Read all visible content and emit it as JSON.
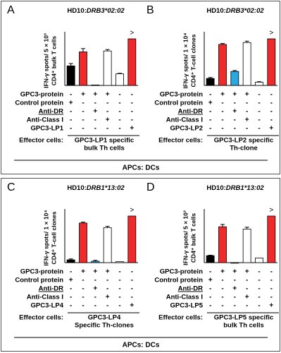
{
  "chart_data": [
    {
      "type": "bar",
      "letter": "A",
      "title": "HD10:",
      "title_allele": "DRB3*02:02",
      "ylabel": [
        "IFN-γ spots/ 5 × 10³",
        "CD4⁺ bulk T cells"
      ],
      "values": [
        42,
        72,
        1,
        74,
        25,
        100
      ],
      "errors": [
        5,
        7,
        0,
        3,
        1,
        0
      ],
      "colors": [
        "#000000",
        "#ee2a2a",
        "#2aa8e0",
        "#ffffff",
        "#ffffff",
        "#ee2a2a"
      ],
      "ylim": [
        0,
        100
      ],
      "annotation": ">",
      "rows": [
        {
          "label": "GPC3-protein",
          "color": "#e00000",
          "signs": [
            "-",
            "+",
            "+",
            "+",
            "-",
            "-"
          ]
        },
        {
          "label": "Control protein",
          "color": "#000000",
          "signs": [
            "+",
            "-",
            "-",
            "-",
            "-",
            "-"
          ]
        },
        {
          "label": "Anti-DR",
          "color": "#2b3f9a",
          "signs": [
            "-",
            "-",
            "+",
            "-",
            "-",
            "-"
          ]
        },
        {
          "label": "Anti-Class I",
          "color": "#000000",
          "signs": [
            "-",
            "-",
            "-",
            "+",
            "-",
            "-"
          ]
        },
        {
          "label": "GPC3-LP1",
          "color": "#e00000",
          "signs": [
            "-",
            "-",
            "-",
            "-",
            "-",
            "+"
          ]
        }
      ],
      "effector_label": "Effector cells:",
      "effector_value": [
        "GPC3-LP1 specific",
        "bulk Th cells"
      ]
    },
    {
      "type": "bar",
      "letter": "B",
      "title": "HD10:",
      "title_allele": "DRB3*02:02",
      "ylabel": [
        "IFN-γ spots/ 1 × 10⁴",
        "CD4⁺ T-cell clones"
      ],
      "values": [
        15,
        88,
        30,
        92,
        7,
        100
      ],
      "errors": [
        2,
        2,
        2,
        3,
        1,
        0
      ],
      "colors": [
        "#000000",
        "#ee2a2a",
        "#2aa8e0",
        "#ffffff",
        "#ffffff",
        "#ee2a2a"
      ],
      "ylim": [
        0,
        100
      ],
      "annotation": ">",
      "rows": [
        {
          "label": "GPC3-protein",
          "color": "#e00000",
          "signs": [
            "-",
            "+",
            "+",
            "+",
            "-",
            "-"
          ]
        },
        {
          "label": "Control protein",
          "color": "#000000",
          "signs": [
            "+",
            "-",
            "-",
            "-",
            "-",
            "-"
          ]
        },
        {
          "label": "Anti-DR",
          "color": "#2b3f9a",
          "signs": [
            "-",
            "-",
            "+",
            "-",
            "-",
            "-"
          ]
        },
        {
          "label": "Anti-Class I",
          "color": "#000000",
          "signs": [
            "-",
            "-",
            "-",
            "+",
            "-",
            "-"
          ]
        },
        {
          "label": "GPC3-LP2",
          "color": "#e00000",
          "signs": [
            "-",
            "-",
            "-",
            "-",
            "-",
            "+"
          ]
        }
      ],
      "effector_label": "Effector cells:",
      "effector_value": [
        "GPC3-LP2 specific",
        "Th-clone"
      ]
    },
    {
      "type": "bar",
      "letter": "C",
      "title": "HD10:",
      "title_allele": "DRB1*13:02",
      "ylabel": [
        "IFN-γ spots/ 1 × 10⁴",
        "CD4⁺ T-cell clones"
      ],
      "values": [
        6,
        85,
        3,
        75,
        2,
        100
      ],
      "errors": [
        2,
        2,
        2,
        3,
        0,
        0
      ],
      "colors": [
        "#000000",
        "#ee2a2a",
        "#2aa8e0",
        "#ffffff",
        "#ffffff",
        "#ee2a2a"
      ],
      "ylim": [
        0,
        100
      ],
      "annotation": ">",
      "rows": [
        {
          "label": "GPC3-protein",
          "color": "#e00000",
          "signs": [
            "-",
            "+",
            "+",
            "+",
            "-",
            "-"
          ]
        },
        {
          "label": "Control protein",
          "color": "#000000",
          "signs": [
            "+",
            "-",
            "-",
            "-",
            "-",
            "-"
          ]
        },
        {
          "label": "Anti-DR",
          "color": "#2b3f9a",
          "signs": [
            "-",
            "-",
            "+",
            "-",
            "-",
            "-"
          ]
        },
        {
          "label": "Anti-Class I",
          "color": "#000000",
          "signs": [
            "-",
            "-",
            "-",
            "+",
            "-",
            "-"
          ]
        },
        {
          "label": "GPC3-LP4",
          "color": "#e00000",
          "signs": [
            "-",
            "-",
            "-",
            "-",
            "-",
            "+"
          ]
        }
      ],
      "effector_label": "Effector cells:",
      "effector_value": [
        "GPC3-LP4",
        "Specific Th-clones"
      ]
    },
    {
      "type": "bar",
      "letter": "D",
      "title": "HD10:",
      "title_allele": "DRB1*13:02",
      "ylabel": [
        "IFN-γ spots/ 5 × 10³",
        "CD4⁺ bulk T cells"
      ],
      "values": [
        15,
        77,
        0,
        72,
        10,
        100
      ],
      "errors": [
        1,
        5,
        0,
        4,
        0,
        0
      ],
      "colors": [
        "#000000",
        "#ee2a2a",
        "#2aa8e0",
        "#ffffff",
        "#ffffff",
        "#ee2a2a"
      ],
      "ylim": [
        0,
        100
      ],
      "annotation": ">",
      "rows": [
        {
          "label": "GPC3-protein",
          "color": "#e00000",
          "signs": [
            "-",
            "+",
            "+",
            "+",
            "-",
            "-"
          ]
        },
        {
          "label": "Control protein",
          "color": "#000000",
          "signs": [
            "+",
            "-",
            "-",
            "-",
            "-",
            "-"
          ]
        },
        {
          "label": "Anti-DR",
          "color": "#2b3f9a",
          "signs": [
            "-",
            "-",
            "+",
            "-",
            "-",
            "-"
          ]
        },
        {
          "label": "Anti-Class I",
          "color": "#000000",
          "signs": [
            "-",
            "-",
            "-",
            "+",
            "-",
            "-"
          ]
        },
        {
          "label": "GPC3-LP5",
          "color": "#e00000",
          "signs": [
            "-",
            "-",
            "-",
            "-",
            "-",
            "+"
          ]
        }
      ],
      "effector_label": "Effector cells:",
      "effector_value": [
        "GPC3-LP5 specific",
        "bulk Th cells"
      ]
    }
  ],
  "sections": [
    {
      "footer": "APCs: DCs"
    },
    {
      "footer": "APCs: DCs"
    }
  ]
}
